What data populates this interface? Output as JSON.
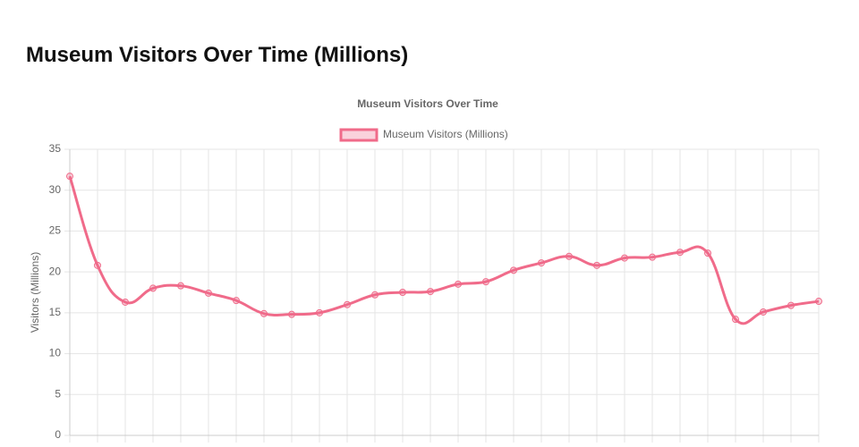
{
  "page_title": "Museum Visitors Over Time (Millions)",
  "chart_data": {
    "type": "line",
    "title": "Museum Visitors Over Time",
    "y_label": "Visitors (Millions)",
    "categories": [
      null,
      null,
      null,
      null,
      null,
      null,
      null,
      null,
      null,
      null,
      null,
      null,
      null,
      null,
      null,
      null,
      null,
      null,
      null,
      null,
      null,
      null,
      null,
      null,
      null,
      null,
      null,
      null
    ],
    "series": [
      {
        "name": "Museum Visitors (Millions)",
        "color": "#f06b8a",
        "values": [
          31.7,
          20.8,
          16.3,
          18.0,
          18.3,
          17.4,
          16.5,
          14.9,
          14.8,
          15.0,
          16.0,
          17.2,
          17.5,
          17.6,
          18.5,
          18.8,
          20.2,
          21.1,
          21.9,
          20.8,
          21.7,
          21.8,
          22.4,
          22.3,
          14.2,
          15.1,
          15.9,
          16.4
        ]
      }
    ],
    "ylim": [
      0,
      35
    ],
    "yticks": [
      0,
      5,
      10,
      15,
      20,
      25,
      30,
      35
    ],
    "grid": true,
    "legend": "top"
  }
}
